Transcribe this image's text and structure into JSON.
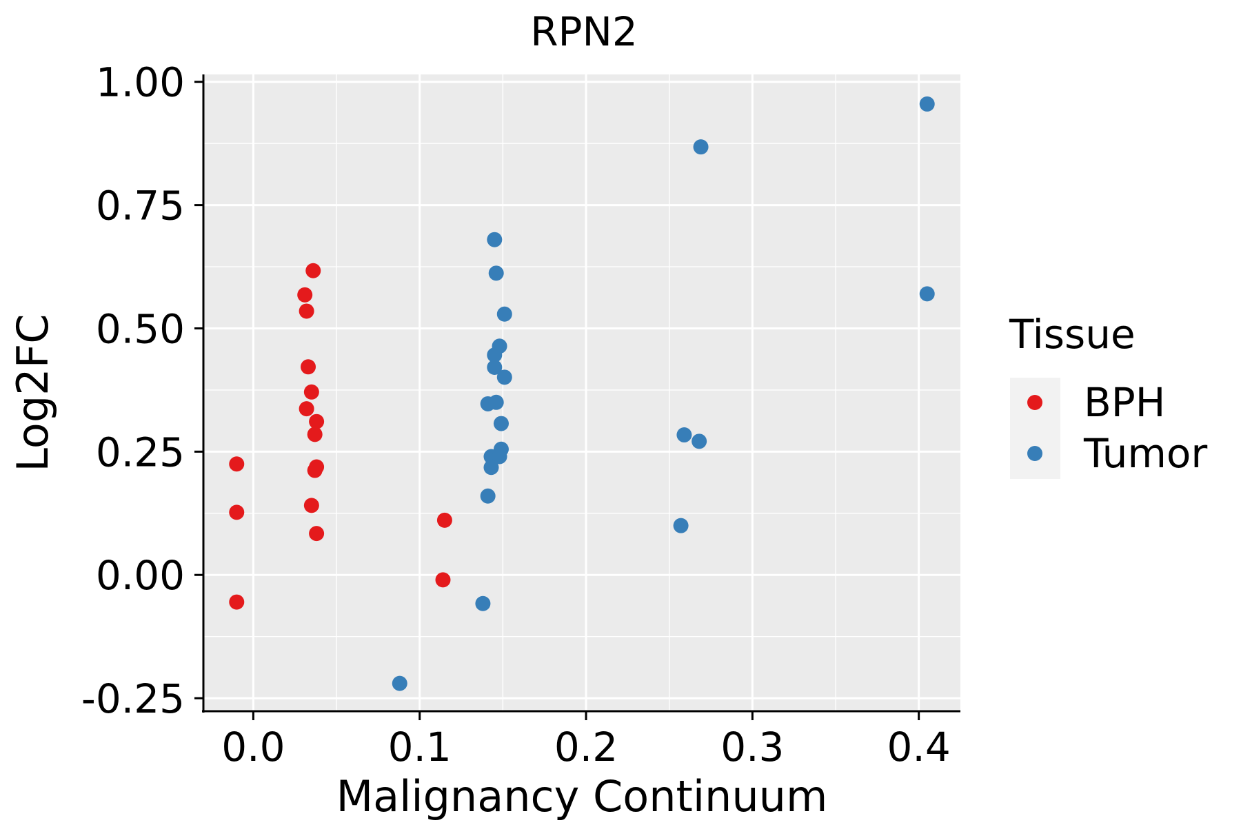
{
  "chart_data": {
    "type": "scatter",
    "title": "RPN2",
    "xlabel": "Malignancy Continuum",
    "ylabel": "Log2FC",
    "xlim": [
      -0.03,
      0.425
    ],
    "ylim": [
      -0.275,
      1.015
    ],
    "x_ticks": [
      "0.0",
      "0.1",
      "0.2",
      "0.3",
      "0.4"
    ],
    "x_tick_values": [
      0.0,
      0.1,
      0.2,
      0.3,
      0.4
    ],
    "y_ticks": [
      "-0.25",
      "0.00",
      "0.25",
      "0.50",
      "0.75",
      "1.00"
    ],
    "y_tick_values": [
      -0.25,
      0.0,
      0.25,
      0.5,
      0.75,
      1.0
    ],
    "grid": true,
    "legend_position": "right",
    "legend": {
      "title": "Tissue",
      "entries": [
        {
          "label": "BPH",
          "color": "#E41A1C"
        },
        {
          "label": "Tumor",
          "color": "#377EB8"
        }
      ]
    },
    "series": [
      {
        "name": "BPH",
        "color": "#E41A1C",
        "points": [
          [
            -0.01,
            0.225
          ],
          [
            -0.01,
            0.127
          ],
          [
            -0.01,
            -0.055
          ],
          [
            0.036,
            0.617
          ],
          [
            0.031,
            0.568
          ],
          [
            0.032,
            0.535
          ],
          [
            0.033,
            0.422
          ],
          [
            0.035,
            0.371
          ],
          [
            0.032,
            0.337
          ],
          [
            0.038,
            0.311
          ],
          [
            0.037,
            0.285
          ],
          [
            0.038,
            0.219
          ],
          [
            0.037,
            0.212
          ],
          [
            0.035,
            0.141
          ],
          [
            0.038,
            0.084
          ],
          [
            0.115,
            0.111
          ],
          [
            0.114,
            -0.01
          ]
        ]
      },
      {
        "name": "Tumor",
        "color": "#377EB8",
        "points": [
          [
            0.405,
            0.955
          ],
          [
            0.269,
            0.868
          ],
          [
            0.405,
            0.57
          ],
          [
            0.145,
            0.68
          ],
          [
            0.146,
            0.612
          ],
          [
            0.151,
            0.529
          ],
          [
            0.148,
            0.464
          ],
          [
            0.145,
            0.446
          ],
          [
            0.145,
            0.421
          ],
          [
            0.151,
            0.401
          ],
          [
            0.141,
            0.347
          ],
          [
            0.146,
            0.35
          ],
          [
            0.149,
            0.307
          ],
          [
            0.149,
            0.255
          ],
          [
            0.143,
            0.24
          ],
          [
            0.148,
            0.24
          ],
          [
            0.143,
            0.218
          ],
          [
            0.141,
            0.16
          ],
          [
            0.259,
            0.284
          ],
          [
            0.268,
            0.271
          ],
          [
            0.257,
            0.1
          ],
          [
            0.138,
            -0.058
          ],
          [
            0.088,
            -0.22
          ]
        ]
      }
    ]
  }
}
